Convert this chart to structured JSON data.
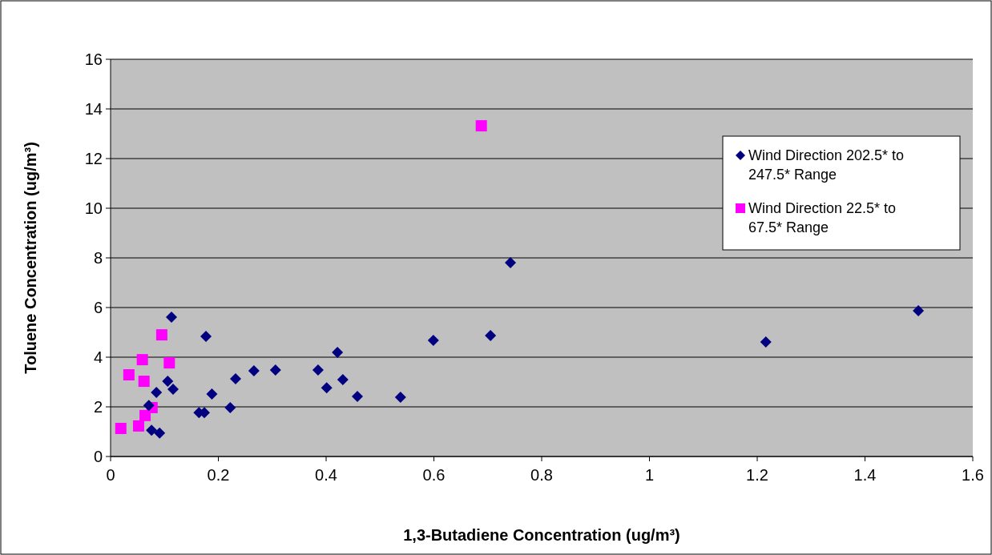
{
  "chart_data": {
    "type": "scatter",
    "xlabel": "1,3-Butadiene Concentration (ug/m³)",
    "ylabel": "Toluene Concentration (ug/m³)",
    "xlim": [
      0,
      1.6
    ],
    "xticks": [
      0,
      0.2,
      0.4,
      0.6,
      0.8,
      1,
      1.2,
      1.4,
      1.6
    ],
    "ylim": [
      0,
      16
    ],
    "yticks": [
      0,
      2,
      4,
      6,
      8,
      10,
      12,
      14,
      16
    ],
    "grid": "y",
    "legend": "top right",
    "series": [
      {
        "name": "Wind Direction 202.5* to 247.5* Range",
        "color": "#000080",
        "marker": "diamond",
        "x": [
          0.113,
          0.177,
          0.106,
          0.116,
          0.085,
          0.071,
          0.076,
          0.091,
          0.164,
          0.174,
          0.188,
          0.222,
          0.232,
          0.266,
          0.306,
          0.385,
          0.421,
          0.401,
          0.431,
          0.458,
          0.538,
          0.599,
          0.705,
          0.742,
          1.216,
          1.499
        ],
        "values": [
          5.61,
          4.84,
          3.03,
          2.71,
          2.58,
          2.06,
          1.06,
          0.94,
          1.77,
          1.77,
          2.52,
          1.97,
          3.13,
          3.45,
          3.48,
          3.48,
          4.19,
          2.77,
          3.1,
          2.42,
          2.39,
          4.68,
          4.87,
          7.81,
          4.61,
          5.87
        ]
      },
      {
        "name": "Wind Direction 22.5* to 67.5* Range",
        "color": "#ff00ff",
        "marker": "square",
        "x": [
          0.688,
          0.095,
          0.109,
          0.059,
          0.034,
          0.062,
          0.077,
          0.064,
          0.052,
          0.019
        ],
        "values": [
          13.32,
          4.9,
          3.77,
          3.9,
          3.29,
          3.03,
          1.97,
          1.65,
          1.23,
          1.13
        ]
      }
    ]
  }
}
